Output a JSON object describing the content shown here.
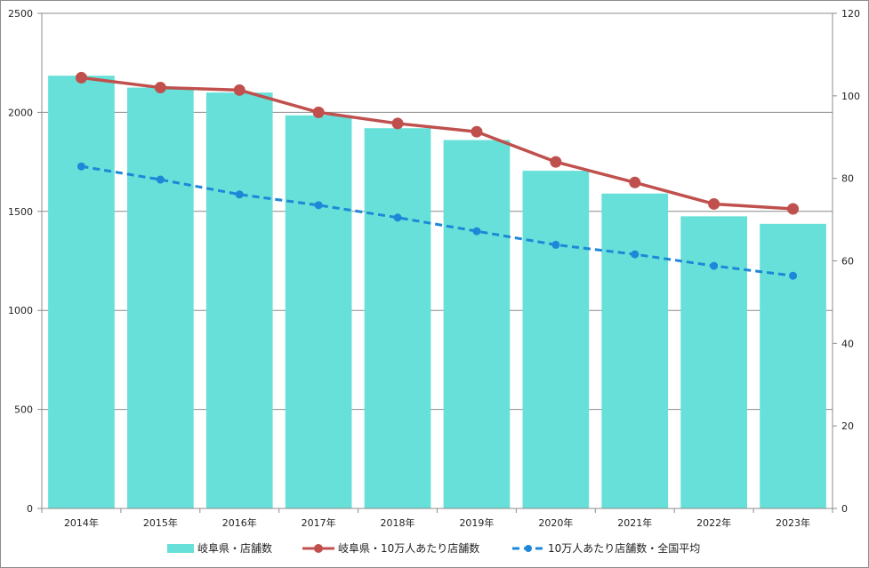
{
  "chart_data": {
    "type": "bar",
    "categories": [
      "2014年",
      "2015年",
      "2016年",
      "2017年",
      "2018年",
      "2019年",
      "2020年",
      "2021年",
      "2022年",
      "2023年"
    ],
    "series": [
      {
        "name": "岐阜県・店舗数",
        "type": "bar",
        "axis": "left",
        "color": "#66e0d8",
        "values": [
          2185,
          2125,
          2100,
          1985,
          1920,
          1860,
          1705,
          1590,
          1475,
          1437
        ]
      },
      {
        "name": "岐阜県・10万人あたり店舗数",
        "type": "line",
        "axis": "right",
        "color": "#c0504d",
        "values": [
          104.4,
          102.0,
          101.4,
          96.0,
          93.3,
          91.3,
          84.0,
          79.0,
          73.8,
          72.6
        ]
      },
      {
        "name": "10万人あたり店舗数・全国平均",
        "type": "line",
        "style": "dashed",
        "axis": "right",
        "color": "#1e87d8",
        "values": [
          82.9,
          79.7,
          76.1,
          73.5,
          70.5,
          67.2,
          63.9,
          61.6,
          58.8,
          56.4
        ]
      }
    ],
    "ylim": [
      0,
      2500
    ],
    "yticks": [
      0,
      500,
      1000,
      1500,
      2000,
      2500
    ],
    "y2lim": [
      0,
      120
    ],
    "y2ticks": [
      0,
      20,
      40,
      60,
      80,
      100,
      120
    ],
    "grid": true,
    "legend_position": "bottom"
  }
}
